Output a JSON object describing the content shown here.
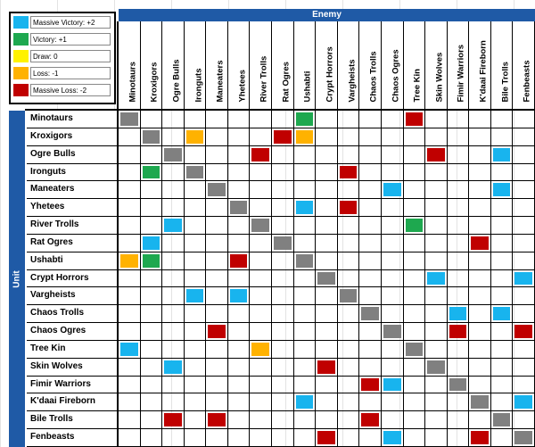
{
  "legend": [
    {
      "label": "Massive Victory: +2",
      "color": "#18b4ee"
    },
    {
      "label": "Victory: +1",
      "color": "#1ea84f"
    },
    {
      "label": "Draw: 0",
      "color": "#fff200"
    },
    {
      "label": "Loss: -1",
      "color": "#ffb200"
    },
    {
      "label": "Massive Loss: -2",
      "color": "#c00000"
    }
  ],
  "enemy_header": "Enemy",
  "unit_header": "Unit",
  "enemies": [
    "Minotaurs",
    "Kroxigors",
    "Ogre Bulls",
    "Ironguts",
    "Maneaters",
    "Yhetees",
    "River Trolls",
    "Rat Ogres",
    "Ushabti",
    "Crypt Horrors",
    "Vargheists",
    "Chaos Trolls",
    "Chaos Ogres",
    "Tree Kin",
    "Skin Wolves",
    "Fimir Warriors",
    "K'daai Fireborn",
    "Bile Trolls",
    "Fenbeasts"
  ],
  "units": [
    "Minotaurs",
    "Kroxigors",
    "Ogre Bulls",
    "Ironguts",
    "Maneaters",
    "Yhetees",
    "River Trolls",
    "Rat Ogres",
    "Ushabti",
    "Crypt Horrors",
    "Vargheists",
    "Chaos Trolls",
    "Chaos Ogres",
    "Tree Kin",
    "Skin Wolves",
    "Fimir Warriors",
    "K'daai Fireborn",
    "Bile Trolls",
    "Fenbeasts"
  ],
  "colors": {
    "self": "#808080",
    "2": "#18b4ee",
    "1": "#1ea84f",
    "0": "#fff200",
    "-1": "#ffb200",
    "-2": "#c00000"
  },
  "matrix": [
    [
      "self",
      "",
      "",
      "",
      "",
      "",
      "",
      "",
      "1",
      "",
      "",
      "",
      "",
      "-2",
      "",
      "",
      "",
      "",
      ""
    ],
    [
      "",
      "self",
      "",
      "-1",
      "",
      "",
      "",
      "-2",
      "-1",
      "",
      "",
      "",
      "",
      "",
      "",
      "",
      "",
      "",
      ""
    ],
    [
      "",
      "",
      "self",
      "",
      "",
      "",
      "-2",
      "",
      "",
      "",
      "",
      "",
      "",
      "",
      "-2",
      "",
      "",
      "2",
      ""
    ],
    [
      "",
      "1",
      "",
      "self",
      "",
      "",
      "",
      "",
      "",
      "",
      "-2",
      "",
      "",
      "",
      "",
      "",
      "",
      "",
      ""
    ],
    [
      "",
      "",
      "",
      "",
      "self",
      "",
      "",
      "",
      "",
      "",
      "",
      "",
      "2",
      "",
      "",
      "",
      "",
      "2",
      ""
    ],
    [
      "",
      "",
      "",
      "",
      "",
      "self",
      "",
      "",
      "2",
      "",
      "-2",
      "",
      "",
      "",
      "",
      "",
      "",
      "",
      ""
    ],
    [
      "",
      "",
      "2",
      "",
      "",
      "",
      "self",
      "",
      "",
      "",
      "",
      "",
      "",
      "1",
      "",
      "",
      "",
      "",
      ""
    ],
    [
      "",
      "2",
      "",
      "",
      "",
      "",
      "",
      "self",
      "",
      "",
      "",
      "",
      "",
      "",
      "",
      "",
      "-2",
      "",
      ""
    ],
    [
      "-1",
      "1",
      "",
      "",
      "",
      "-2",
      "",
      "",
      "self",
      "",
      "",
      "",
      "",
      "",
      "",
      "",
      "",
      "",
      ""
    ],
    [
      "",
      "",
      "",
      "",
      "",
      "",
      "",
      "",
      "",
      "self",
      "",
      "",
      "",
      "",
      "2",
      "",
      "",
      "",
      "2"
    ],
    [
      "",
      "",
      "",
      "2",
      "",
      "2",
      "",
      "",
      "",
      "",
      "self",
      "",
      "",
      "",
      "",
      "",
      "",
      "",
      ""
    ],
    [
      "",
      "",
      "",
      "",
      "",
      "",
      "",
      "",
      "",
      "",
      "",
      "self",
      "",
      "",
      "",
      "2",
      "",
      "2",
      ""
    ],
    [
      "",
      "",
      "",
      "",
      "-2",
      "",
      "",
      "",
      "",
      "",
      "",
      "",
      "self",
      "",
      "",
      "-2",
      "",
      "",
      "-2"
    ],
    [
      "2",
      "",
      "",
      "",
      "",
      "",
      "-1",
      "",
      "",
      "",
      "",
      "",
      "",
      "self",
      "",
      "",
      "",
      "",
      ""
    ],
    [
      "",
      "",
      "2",
      "",
      "",
      "",
      "",
      "",
      "",
      "-2",
      "",
      "",
      "",
      "",
      "self",
      "",
      "",
      "",
      ""
    ],
    [
      "",
      "",
      "",
      "",
      "",
      "",
      "",
      "",
      "",
      "",
      "",
      "-2",
      "2",
      "",
      "",
      "self",
      "",
      "",
      ""
    ],
    [
      "",
      "",
      "",
      "",
      "",
      "",
      "",
      "",
      "2",
      "",
      "",
      "",
      "",
      "",
      "",
      "",
      "self",
      "",
      "2"
    ],
    [
      "",
      "",
      "-2",
      "",
      "-2",
      "",
      "",
      "",
      "",
      "",
      "",
      "-2",
      "",
      "",
      "",
      "",
      "",
      "self",
      ""
    ],
    [
      "",
      "",
      "",
      "",
      "",
      "",
      "",
      "",
      "",
      "-2",
      "",
      "",
      "2",
      "",
      "",
      "",
      "-2",
      "",
      "self"
    ]
  ]
}
